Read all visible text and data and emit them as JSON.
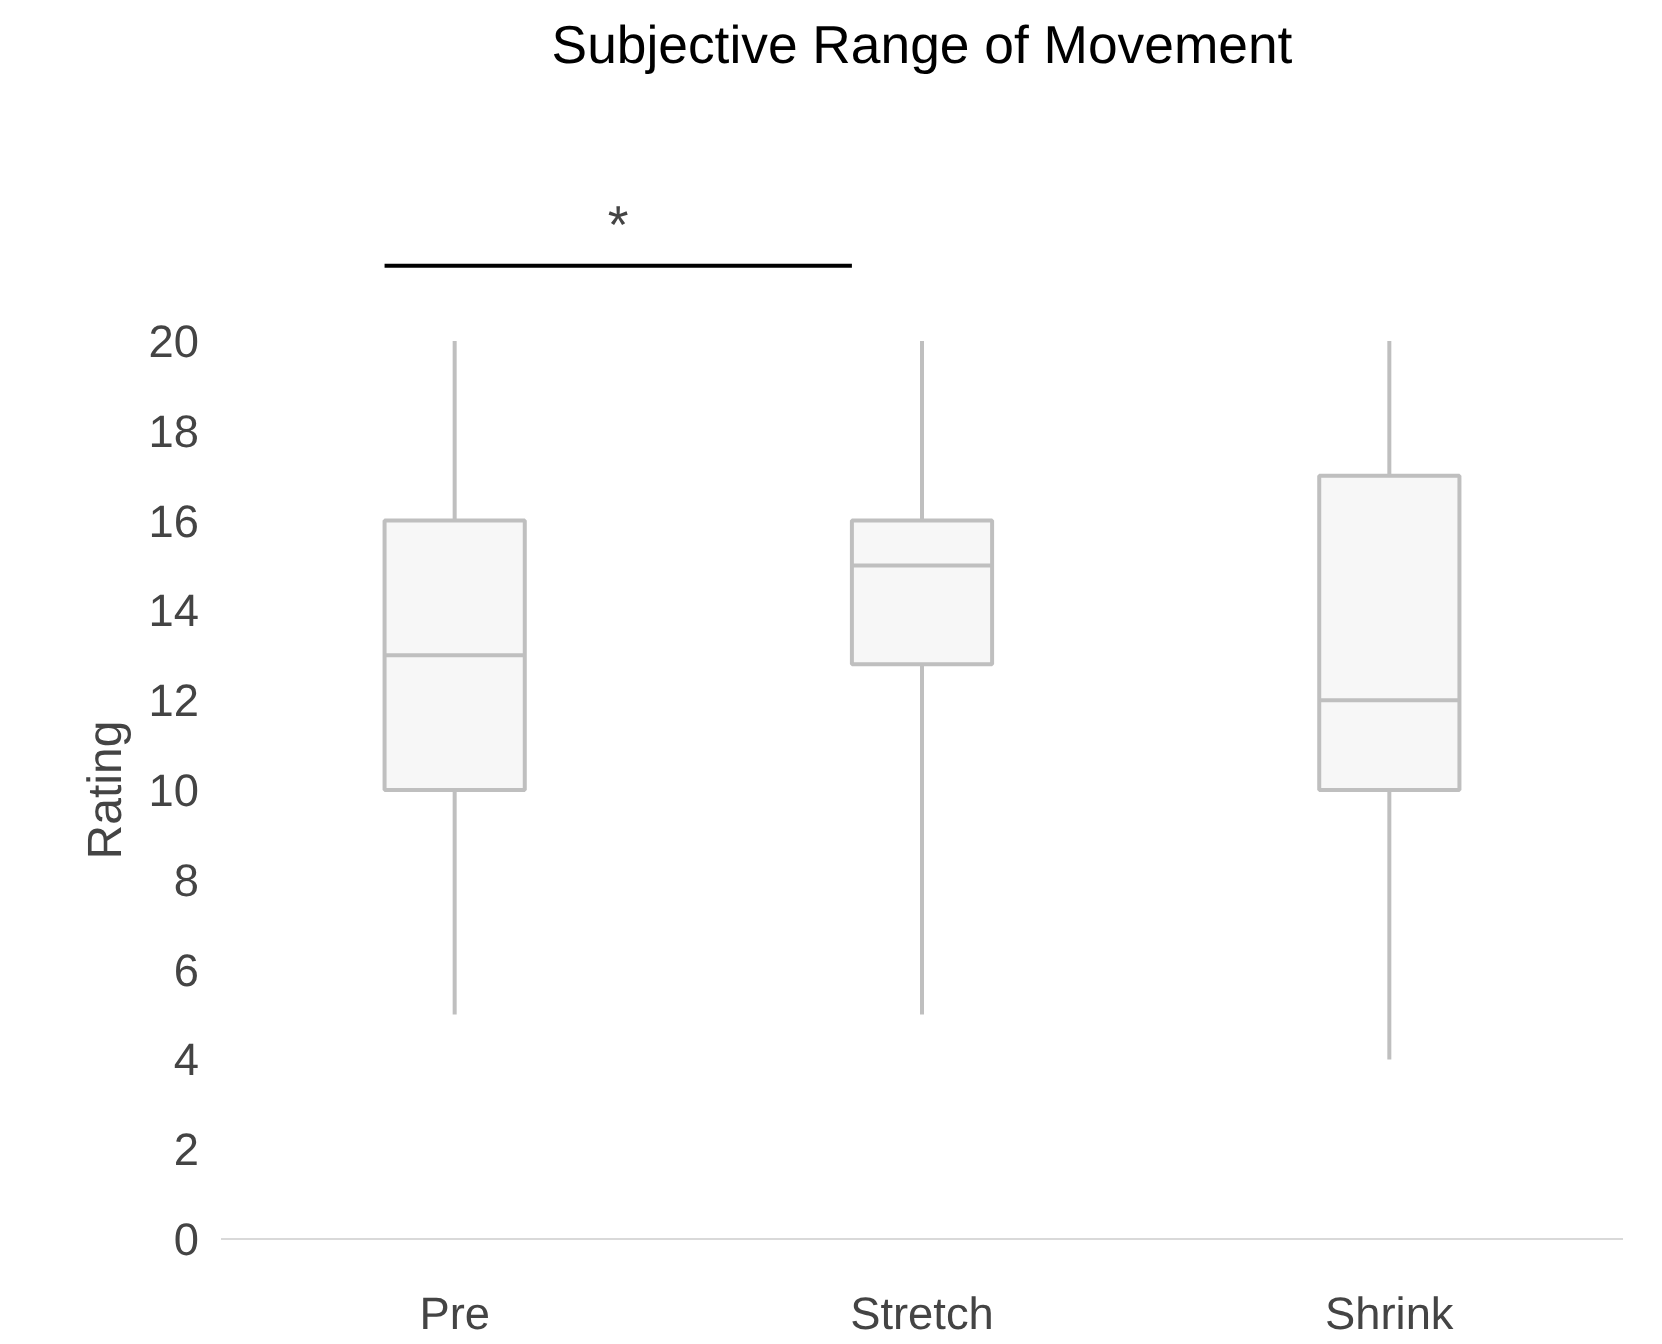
{
  "chart_data": {
    "type": "box",
    "title": "Subjective Range of Movement",
    "ylabel": "Rating",
    "categories": [
      "Pre",
      "Stretch",
      "Shrink"
    ],
    "boxes": [
      {
        "low": 5,
        "q1": 10,
        "median": 13,
        "q3": 16,
        "high": 20
      },
      {
        "low": 5,
        "q1": 12.8,
        "median": 15,
        "q3": 16,
        "high": 20
      },
      {
        "low": 4,
        "q1": 10,
        "median": 12,
        "q3": 17,
        "high": 20
      }
    ],
    "color": "#f7f7f7",
    "ylim": [
      0,
      20
    ],
    "yticks": [
      0,
      2,
      4,
      6,
      8,
      10,
      12,
      14,
      16,
      18,
      20
    ],
    "grid": false,
    "annotations": [
      "*"
    ]
  }
}
